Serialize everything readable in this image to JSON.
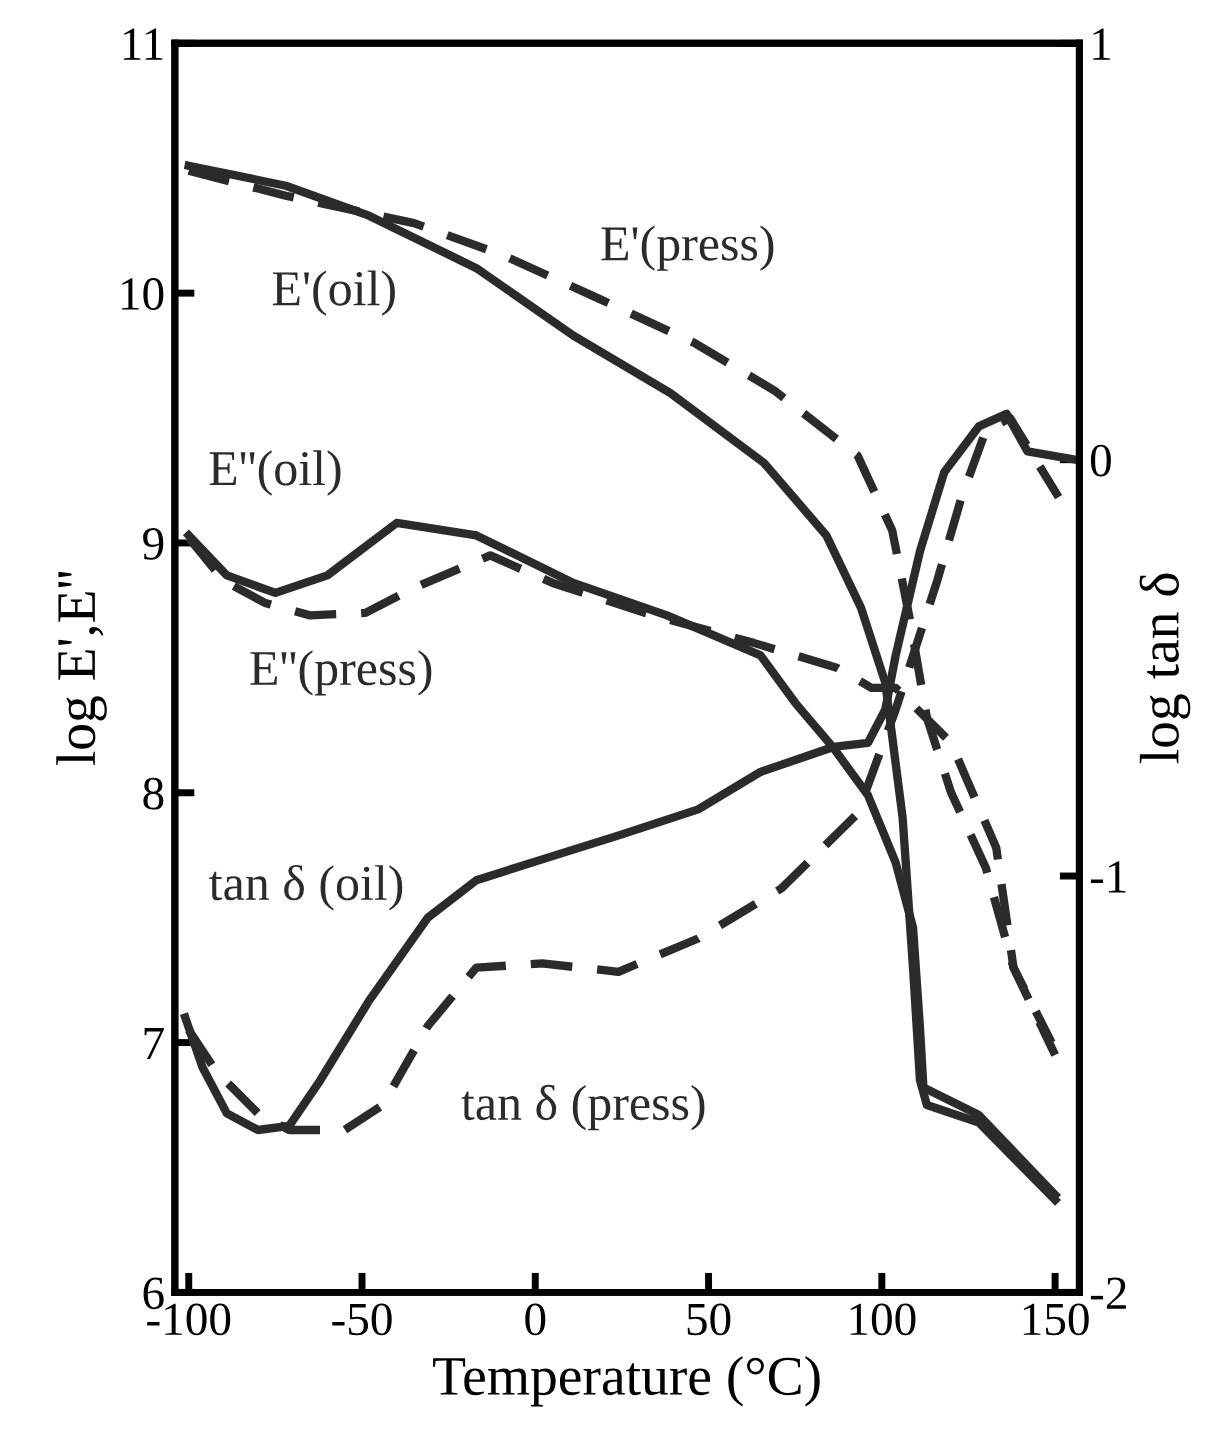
{
  "chart_data": {
    "type": "line",
    "xlabel": "Temperature (°C)",
    "ylabel": "log E',E''",
    "y2label": "log tan δ",
    "xlim": [
      -104,
      157
    ],
    "xticks": [
      -100,
      -50,
      0,
      50,
      100,
      150
    ],
    "ylim": [
      6,
      11
    ],
    "yticks": [
      6,
      7,
      8,
      9,
      10,
      11
    ],
    "y2lim": [
      -2,
      1
    ],
    "y2ticks": [
      -2,
      -1,
      0,
      1
    ],
    "grid": false,
    "legend": false,
    "marker": "none",
    "series": [
      {
        "name": "E'(oil)",
        "color": "#2b2b2b",
        "line_style": "solid",
        "x": [
          -100,
          -72,
          -48,
          -17,
          11,
          39,
          66,
          84,
          94,
          101,
          106,
          109,
          111,
          113,
          128,
          150
        ],
        "values": [
          10.51,
          10.43,
          10.31,
          10.1,
          9.83,
          9.6,
          9.32,
          9.03,
          8.74,
          8.44,
          7.9,
          7.3,
          6.85,
          6.75,
          6.68,
          6.37
        ]
      },
      {
        "name": "E'(press)",
        "color": "#2b2b2b",
        "line_style": "dashed",
        "x": [
          -100,
          -72,
          -35,
          -9,
          18,
          46,
          69,
          93,
          103,
          108,
          113,
          120,
          130,
          138,
          150
        ],
        "values": [
          10.49,
          10.39,
          10.28,
          10.15,
          9.98,
          9.8,
          9.61,
          9.35,
          9.05,
          8.7,
          8.3,
          8.0,
          7.7,
          7.3,
          6.95
        ]
      },
      {
        "name": "E''(oil)",
        "color": "#2b2b2b",
        "line_style": "solid",
        "x": [
          -100,
          -89,
          -75,
          -60,
          -40,
          -17,
          11,
          38,
          65,
          75,
          86,
          96,
          104,
          109,
          111,
          112,
          128,
          150
        ],
        "values": [
          9.03,
          8.87,
          8.8,
          8.87,
          9.08,
          9.03,
          8.84,
          8.71,
          8.55,
          8.36,
          8.18,
          7.99,
          7.72,
          7.46,
          7.06,
          6.82,
          6.71,
          6.39
        ]
      },
      {
        "name": "E''(press)",
        "color": "#2b2b2b",
        "line_style": "dashed",
        "x": [
          -100,
          -90,
          -78,
          -65,
          -49,
          -35,
          -13,
          5,
          34,
          63,
          87,
          97,
          104,
          120,
          124,
          133,
          138,
          149
        ],
        "values": [
          9.02,
          8.85,
          8.76,
          8.71,
          8.72,
          8.82,
          8.95,
          8.84,
          8.71,
          8.6,
          8.5,
          8.42,
          8.42,
          8.2,
          8.07,
          7.78,
          7.3,
          7.0
        ]
      },
      {
        "name": "tan δ (oil)",
        "color": "#2b2b2b",
        "line_style": "solid",
        "axis": "y2",
        "x": [
          -101,
          -96,
          -89,
          -80,
          -71,
          -62,
          -48,
          -31,
          -17,
          2,
          25,
          47,
          65,
          86,
          96,
          101,
          104,
          111,
          118,
          128,
          136,
          142,
          156
        ],
        "values": [
          -1.34,
          -1.46,
          -1.57,
          -1.61,
          -1.6,
          -1.49,
          -1.3,
          -1.1,
          -1.01,
          -0.96,
          -0.9,
          -0.84,
          -0.75,
          -0.69,
          -0.68,
          -0.6,
          -0.47,
          -0.22,
          -0.03,
          0.08,
          0.11,
          0.02,
          0.0
        ]
      },
      {
        "name": "tan δ (press)",
        "color": "#2b2b2b",
        "line_style": "dashed",
        "axis": "y2",
        "x": [
          -100,
          -92,
          -80,
          -71,
          -55,
          -44,
          -31,
          -17,
          2,
          24,
          47,
          71,
          93,
          104,
          116,
          123,
          130,
          137,
          151
        ],
        "values": [
          -1.37,
          -1.47,
          -1.57,
          -1.61,
          -1.61,
          -1.55,
          -1.36,
          -1.22,
          -1.21,
          -1.23,
          -1.15,
          -1.03,
          -0.85,
          -0.6,
          -0.29,
          -0.09,
          0.07,
          0.1,
          -0.09
        ]
      }
    ]
  }
}
